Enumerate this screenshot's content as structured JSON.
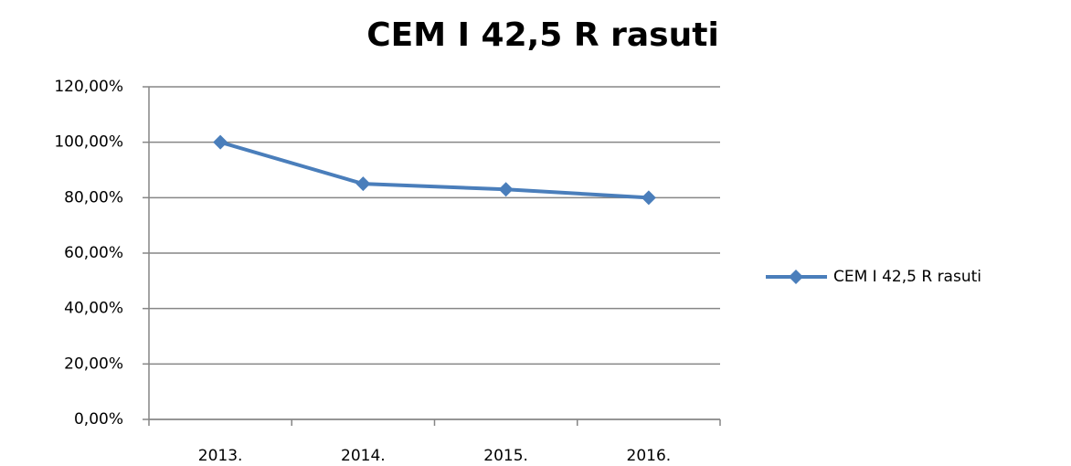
{
  "chart_data": {
    "type": "line",
    "title": "CEM I 42,5 R rasuti",
    "categories": [
      "2013.",
      "2014.",
      "2015.",
      "2016."
    ],
    "series": [
      {
        "name": "CEM I 42,5 R rasuti",
        "color": "#4a7ebb",
        "values": [
          100,
          85,
          83,
          80
        ]
      }
    ],
    "ylim": [
      0,
      120
    ],
    "yticks": [
      {
        "value": 0,
        "label": "0,00%"
      },
      {
        "value": 20,
        "label": "20,00%"
      },
      {
        "value": 40,
        "label": "40,00%"
      },
      {
        "value": 60,
        "label": "60,00%"
      },
      {
        "value": 80,
        "label": "80,00%"
      },
      {
        "value": 100,
        "label": "100,00%"
      },
      {
        "value": 120,
        "label": "120,00%"
      }
    ],
    "grid": true,
    "legend": "right"
  }
}
